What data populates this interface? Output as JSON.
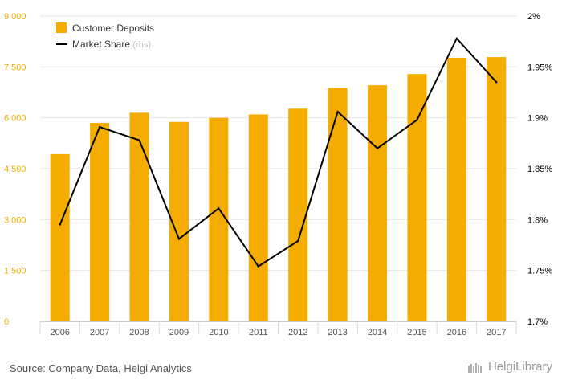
{
  "chart_data": {
    "type": "bar",
    "categories": [
      "2006",
      "2007",
      "2008",
      "2009",
      "2010",
      "2011",
      "2012",
      "2013",
      "2014",
      "2015",
      "2016",
      "2017"
    ],
    "series": [
      {
        "name": "Customer Deposits",
        "type": "bar",
        "axis": "left",
        "color": "#f5ac00",
        "values": [
          4930,
          5850,
          6150,
          5880,
          6000,
          6100,
          6270,
          6880,
          6960,
          7290,
          7770,
          7790
        ]
      },
      {
        "name": "Market Share",
        "name_suffix": "(rhs)",
        "type": "line",
        "axis": "right",
        "color": "#000000",
        "values": [
          1.795,
          1.891,
          1.878,
          1.781,
          1.811,
          1.754,
          1.779,
          1.906,
          1.87,
          1.898,
          1.978,
          1.935
        ]
      }
    ],
    "y_left": {
      "ylim": [
        0,
        9000
      ],
      "ticks": [
        0,
        1500,
        3000,
        4500,
        6000,
        7500,
        9000
      ],
      "tick_labels": [
        "0",
        "1 500",
        "3 000",
        "4 500",
        "6 000",
        "7 500",
        "9 000"
      ],
      "label_color": "#f5ac00"
    },
    "y_right": {
      "ylim": [
        1.7,
        2.0
      ],
      "ticks": [
        1.7,
        1.75,
        1.8,
        1.85,
        1.9,
        1.95,
        2.0
      ],
      "tick_labels": [
        "1.7%",
        "1.75%",
        "1.8%",
        "1.85%",
        "1.9%",
        "1.95%",
        "2%"
      ],
      "label_color": "#000000"
    },
    "legend_position": "top-left",
    "grid": "horizontal",
    "title": "",
    "xlabel": "",
    "ylabel": ""
  },
  "footer": {
    "source": "Source: Company Data, Helgi Analytics",
    "brand": "HelgiLibrary"
  },
  "colors": {
    "bar": "#f5ac00",
    "line": "#000000",
    "grid": "#e6e6e6",
    "axis_text": "#555555"
  }
}
